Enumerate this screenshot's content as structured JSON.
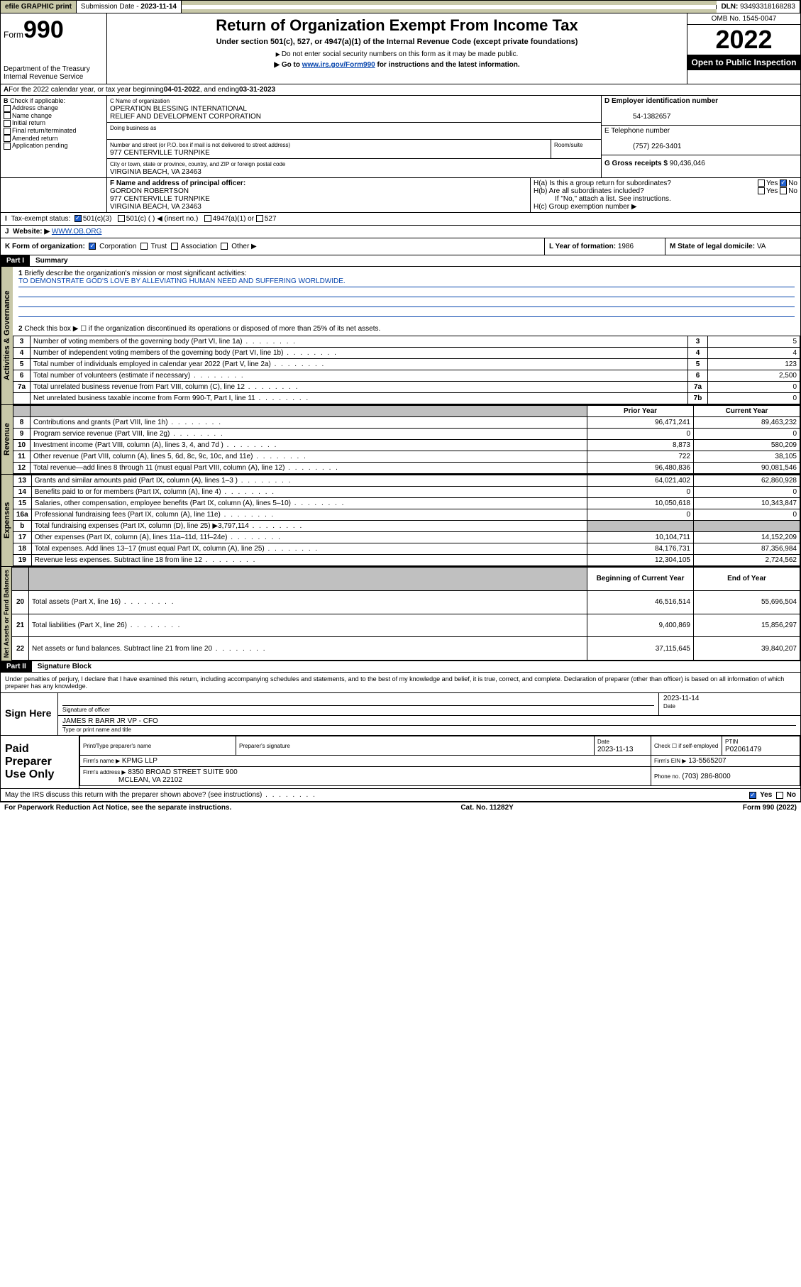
{
  "topbar": {
    "efile": "efile GRAPHIC print",
    "subdate_lbl": "Submission Date - ",
    "subdate": "2023-11-14",
    "dln_lbl": "DLN: ",
    "dln": "93493318168283"
  },
  "header": {
    "form_word": "Form",
    "form_num": "990",
    "dept": "Department of the Treasury",
    "irs": "Internal Revenue Service",
    "title": "Return of Organization Exempt From Income Tax",
    "subtitle": "Under section 501(c), 527, or 4947(a)(1) of the Internal Revenue Code (except private foundations)",
    "note1": "Do not enter social security numbers on this form as it may be made public.",
    "note2_pre": "Go to ",
    "note2_link": "www.irs.gov/Form990",
    "note2_post": " for instructions and the latest information.",
    "omb": "OMB No. 1545-0047",
    "year": "2022",
    "inspect": "Open to Public Inspection"
  },
  "periodA": {
    "text_pre": "For the 2022 calendar year, or tax year beginning ",
    "begin": "04-01-2022",
    "mid": " , and ending ",
    "end": "03-31-2023"
  },
  "boxB": {
    "title": "Check if applicable:",
    "items": [
      "Address change",
      "Name change",
      "Initial return",
      "Final return/terminated",
      "Amended return",
      "Application pending"
    ]
  },
  "boxC": {
    "lbl": "C Name of organization",
    "name1": "OPERATION BLESSING INTERNATIONAL",
    "name2": "RELIEF AND DEVELOPMENT CORPORATION",
    "dba_lbl": "Doing business as",
    "addr_lbl": "Number and street (or P.O. box if mail is not delivered to street address)",
    "room_lbl": "Room/suite",
    "addr": "977 CENTERVILLE TURNPIKE",
    "city_lbl": "City or town, state or province, country, and ZIP or foreign postal code",
    "city": "VIRGINIA BEACH, VA  23463"
  },
  "boxD": {
    "lbl": "D Employer identification number",
    "val": "54-1382657"
  },
  "boxE": {
    "lbl": "E Telephone number",
    "val": "(757) 226-3401"
  },
  "boxG": {
    "lbl": "G Gross receipts $ ",
    "val": "90,436,046"
  },
  "boxF": {
    "lbl": "F  Name and address of principal officer:",
    "name": "GORDON ROBERTSON",
    "addr1": "977 CENTERVILLE TURNPIKE",
    "addr2": "VIRGINIA BEACH, VA  23463"
  },
  "boxH": {
    "a": "H(a)  Is this a group return for subordinates?",
    "b": "H(b)  Are all subordinates included?",
    "b_note": "If \"No,\" attach a list. See instructions.",
    "c": "H(c)  Group exemption number ▶",
    "yes": "Yes",
    "no": "No"
  },
  "boxI": {
    "lbl": "Tax-exempt status:",
    "o1": "501(c)(3)",
    "o2": "501(c) (  ) ◀ (insert no.)",
    "o3": "4947(a)(1) or",
    "o4": "527"
  },
  "boxJ": {
    "lbl": "Website: ▶",
    "val": "WWW.OB.ORG"
  },
  "boxK": {
    "lbl": "K Form of organization:",
    "o1": "Corporation",
    "o2": "Trust",
    "o3": "Association",
    "o4": "Other ▶"
  },
  "boxL": {
    "lbl": "L Year of formation: ",
    "val": "1986"
  },
  "boxM": {
    "lbl": "M State of legal domicile: ",
    "val": "VA"
  },
  "part1": {
    "hdr": "Part I",
    "title": "Summary",
    "q1": "Briefly describe the organization's mission or most significant activities:",
    "mission": "TO DEMONSTRATE GOD'S LOVE BY ALLEVIATING HUMAN NEED AND SUFFERING WORLDWIDE.",
    "q2": "Check this box ▶ ☐  if the organization discontinued its operations or disposed of more than 25% of its net assets.",
    "tabs": {
      "gov": "Activities & Governance",
      "rev": "Revenue",
      "exp": "Expenses",
      "net": "Net Assets or Fund Balances"
    },
    "cols": {
      "prior": "Prior Year",
      "curr": "Current Year",
      "beg": "Beginning of Current Year",
      "end": "End of Year"
    },
    "rows_gov": [
      {
        "n": "3",
        "t": "Number of voting members of the governing body (Part VI, line 1a)",
        "box": "3",
        "v": "5"
      },
      {
        "n": "4",
        "t": "Number of independent voting members of the governing body (Part VI, line 1b)",
        "box": "4",
        "v": "4"
      },
      {
        "n": "5",
        "t": "Total number of individuals employed in calendar year 2022 (Part V, line 2a)",
        "box": "5",
        "v": "123"
      },
      {
        "n": "6",
        "t": "Total number of volunteers (estimate if necessary)",
        "box": "6",
        "v": "2,500"
      },
      {
        "n": "7a",
        "t": "Total unrelated business revenue from Part VIII, column (C), line 12",
        "box": "7a",
        "v": "0"
      },
      {
        "n": "",
        "t": "Net unrelated business taxable income from Form 990-T, Part I, line 11",
        "box": "7b",
        "v": "0"
      }
    ],
    "rows_rev": [
      {
        "n": "8",
        "t": "Contributions and grants (Part VIII, line 1h)",
        "p": "96,471,241",
        "c": "89,463,232"
      },
      {
        "n": "9",
        "t": "Program service revenue (Part VIII, line 2g)",
        "p": "0",
        "c": "0"
      },
      {
        "n": "10",
        "t": "Investment income (Part VIII, column (A), lines 3, 4, and 7d )",
        "p": "8,873",
        "c": "580,209"
      },
      {
        "n": "11",
        "t": "Other revenue (Part VIII, column (A), lines 5, 6d, 8c, 9c, 10c, and 11e)",
        "p": "722",
        "c": "38,105"
      },
      {
        "n": "12",
        "t": "Total revenue—add lines 8 through 11 (must equal Part VIII, column (A), line 12)",
        "p": "96,480,836",
        "c": "90,081,546"
      }
    ],
    "rows_exp": [
      {
        "n": "13",
        "t": "Grants and similar amounts paid (Part IX, column (A), lines 1–3 )",
        "p": "64,021,402",
        "c": "62,860,928"
      },
      {
        "n": "14",
        "t": "Benefits paid to or for members (Part IX, column (A), line 4)",
        "p": "0",
        "c": "0"
      },
      {
        "n": "15",
        "t": "Salaries, other compensation, employee benefits (Part IX, column (A), lines 5–10)",
        "p": "10,050,618",
        "c": "10,343,847"
      },
      {
        "n": "16a",
        "t": "Professional fundraising fees (Part IX, column (A), line 11e)",
        "p": "0",
        "c": "0"
      },
      {
        "n": "b",
        "t": "Total fundraising expenses (Part IX, column (D), line 25) ▶3,797,114",
        "p": "",
        "c": "",
        "gray": true
      },
      {
        "n": "17",
        "t": "Other expenses (Part IX, column (A), lines 11a–11d, 11f–24e)",
        "p": "10,104,711",
        "c": "14,152,209"
      },
      {
        "n": "18",
        "t": "Total expenses. Add lines 13–17 (must equal Part IX, column (A), line 25)",
        "p": "84,176,731",
        "c": "87,356,984"
      },
      {
        "n": "19",
        "t": "Revenue less expenses. Subtract line 18 from line 12",
        "p": "12,304,105",
        "c": "2,724,562"
      }
    ],
    "rows_net": [
      {
        "n": "20",
        "t": "Total assets (Part X, line 16)",
        "p": "46,516,514",
        "c": "55,696,504"
      },
      {
        "n": "21",
        "t": "Total liabilities (Part X, line 26)",
        "p": "9,400,869",
        "c": "15,856,297"
      },
      {
        "n": "22",
        "t": "Net assets or fund balances. Subtract line 21 from line 20",
        "p": "37,115,645",
        "c": "39,840,207"
      }
    ]
  },
  "part2": {
    "hdr": "Part II",
    "title": "Signature Block",
    "decl": "Under penalties of perjury, I declare that I have examined this return, including accompanying schedules and statements, and to the best of my knowledge and belief, it is true, correct, and complete. Declaration of preparer (other than officer) is based on all information of which preparer has any knowledge.",
    "sign_here": "Sign Here",
    "sig_officer": "Signature of officer",
    "date_lbl": "Date",
    "sig_date": "2023-11-14",
    "officer_name": "JAMES R BARR JR  VP - CFO",
    "officer_sub": "Type or print name and title",
    "paid": "Paid Preparer Use Only",
    "pt_name_lbl": "Print/Type preparer's name",
    "pt_sig_lbl": "Preparer's signature",
    "pt_date": "2023-11-13",
    "pt_check": "Check ☐ if self-employed",
    "ptin_lbl": "PTIN",
    "ptin": "P02061479",
    "firm_lbl": "Firm's name   ▶",
    "firm": "KPMG LLP",
    "firm_ein_lbl": "Firm's EIN ▶",
    "firm_ein": "13-5565207",
    "firm_addr_lbl": "Firm's address ▶",
    "firm_addr1": "8350 BROAD STREET SUITE 900",
    "firm_addr2": "MCLEAN, VA  22102",
    "phone_lbl": "Phone no.",
    "phone": "(703) 286-8000",
    "may": "May the IRS discuss this return with the preparer shown above? (see instructions)"
  },
  "footer": {
    "left": "For Paperwork Reduction Act Notice, see the separate instructions.",
    "mid": "Cat. No. 11282Y",
    "right": "Form 990 (2022)"
  },
  "colors": {
    "headerbg": "#c8c8a8",
    "link": "#0645ad"
  }
}
